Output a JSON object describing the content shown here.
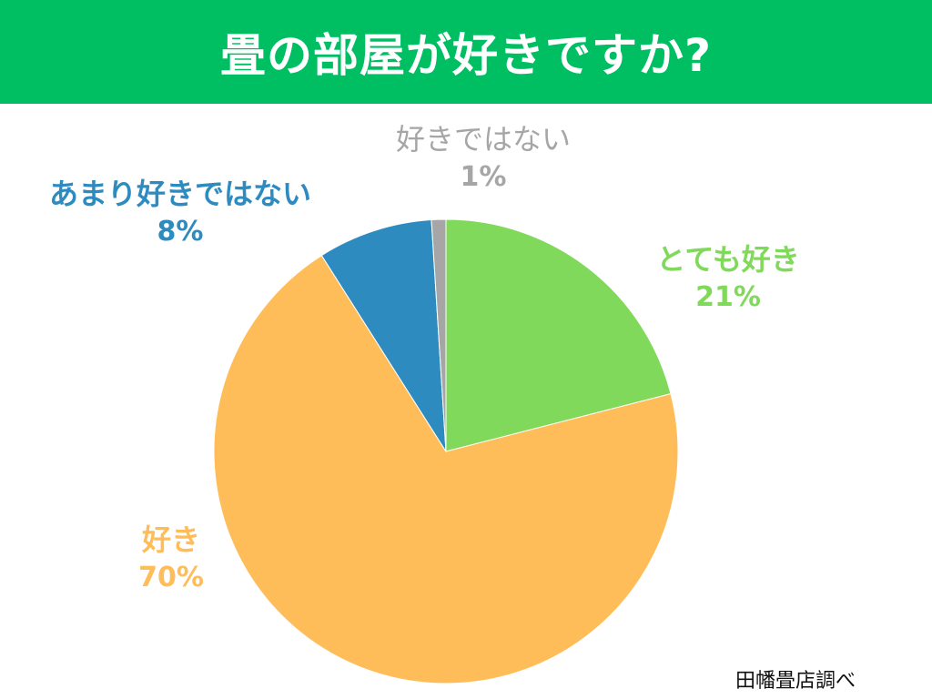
{
  "header": {
    "title": "畳の部屋が好きですか?",
    "color": "#00bf63"
  },
  "source_note": "田幡畳店調べ",
  "chart_data": {
    "type": "pie",
    "title": "畳の部屋が好きですか?",
    "start": "12 o'clock",
    "direction": "clockwise",
    "slices": [
      {
        "label": "とても好き",
        "value": 21,
        "value_label": "21%",
        "color": "#80d95a"
      },
      {
        "label": "好き",
        "value": 70,
        "value_label": "70%",
        "color": "#ffbd59"
      },
      {
        "label": "あまり好きではない",
        "value": 8,
        "value_label": "8%",
        "color": "#2e8bc0"
      },
      {
        "label": "好きではない",
        "value": 1,
        "value_label": "1%",
        "color": "#a6a6a6"
      }
    ],
    "legend": "none"
  }
}
